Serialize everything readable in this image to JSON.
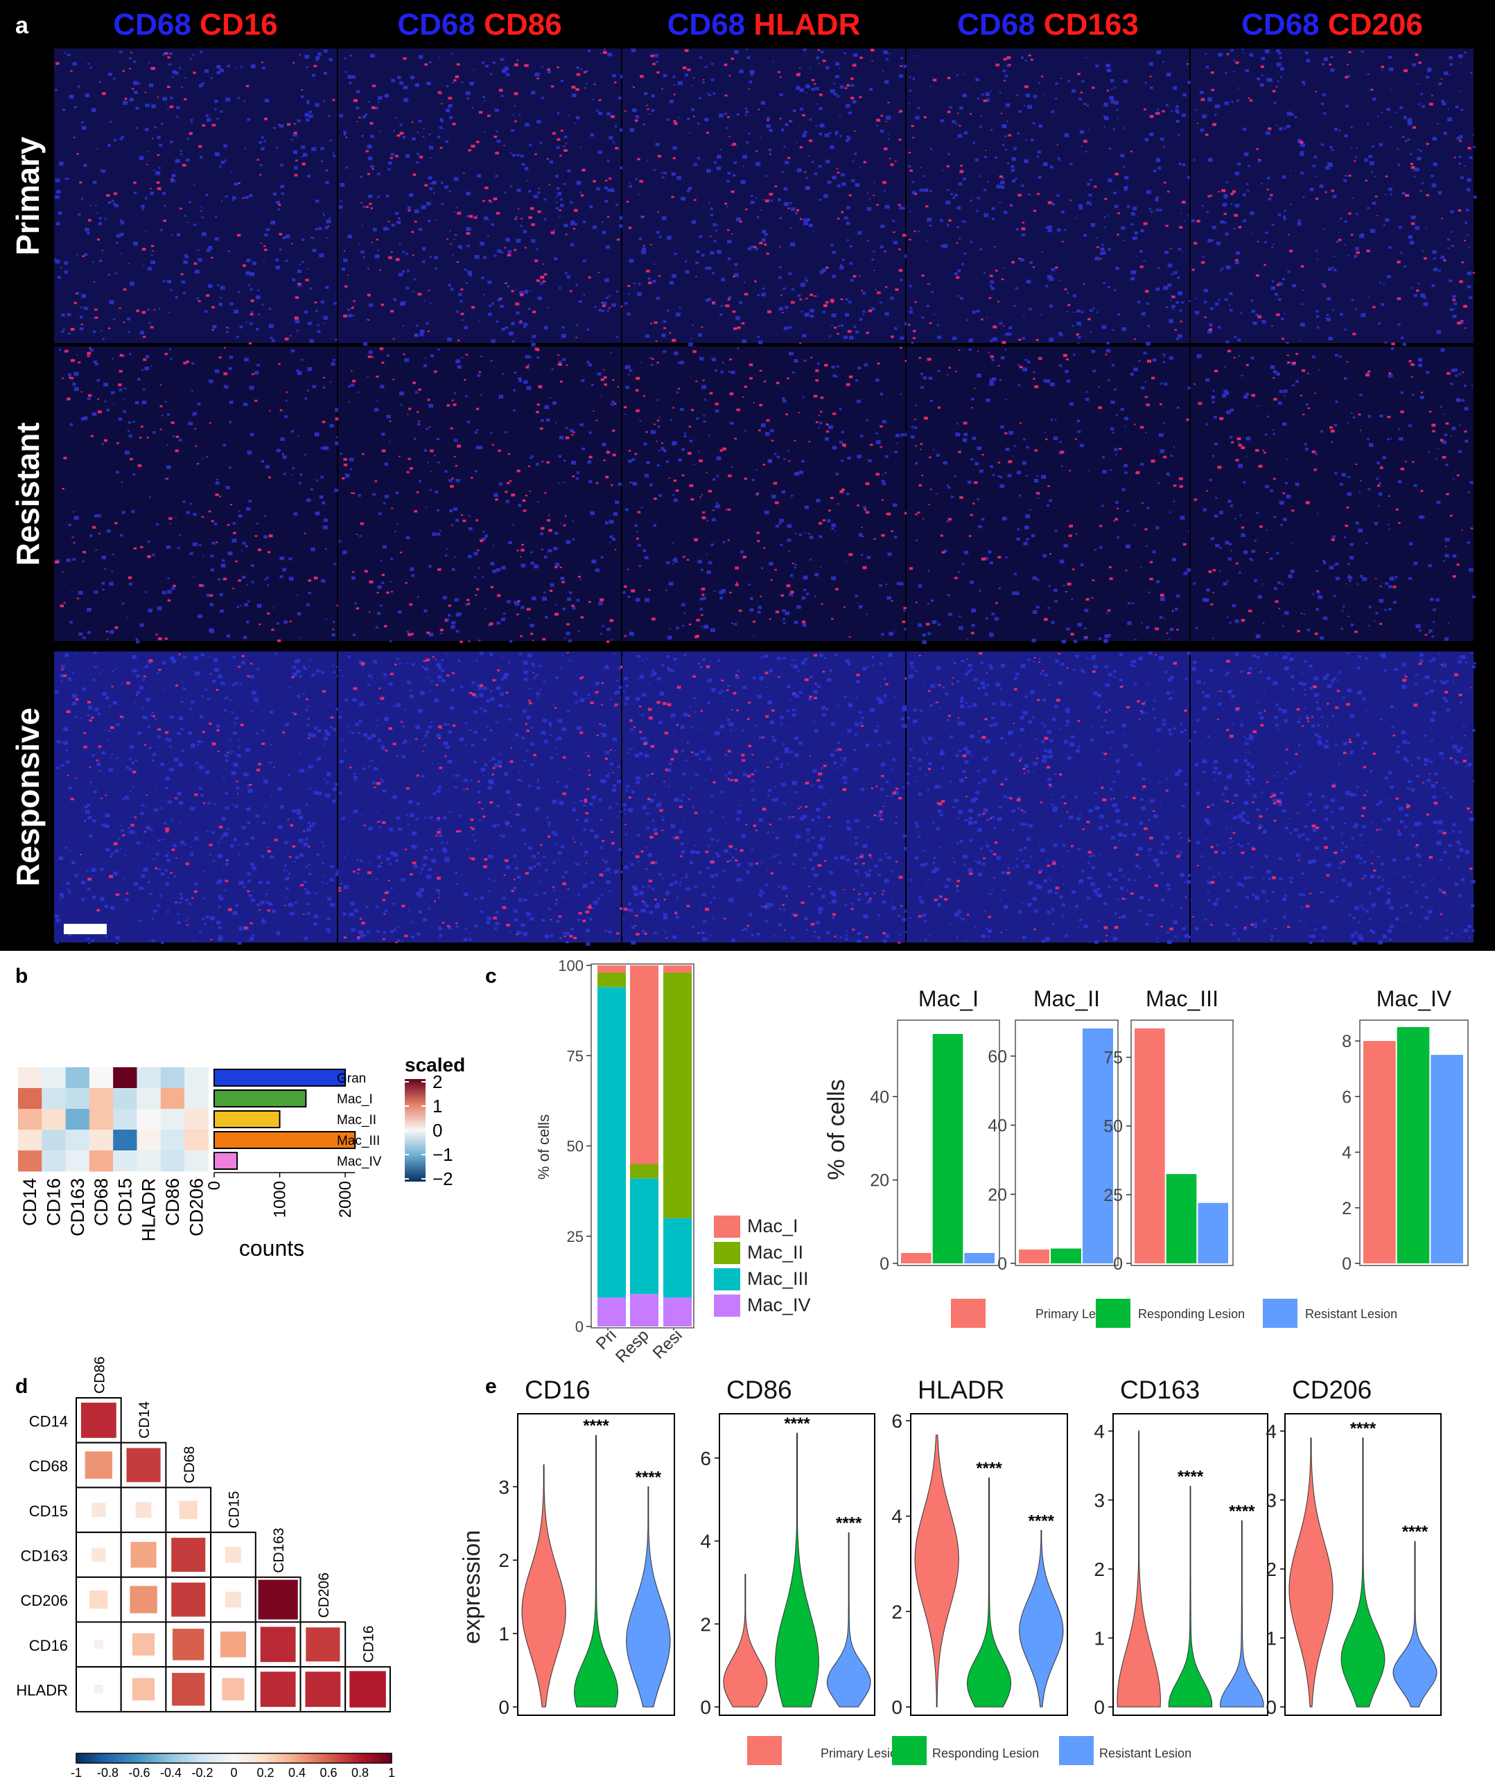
{
  "panel_a": {
    "panel_letter": "a",
    "column_headers": [
      {
        "blue": "CD68",
        "red": "CD16"
      },
      {
        "blue": "CD68",
        "red": "CD86"
      },
      {
        "blue": "CD68",
        "red": "HLADR"
      },
      {
        "blue": "CD68",
        "red": "CD163"
      },
      {
        "blue": "CD68",
        "red": "CD206"
      }
    ],
    "row_labels": [
      "Primary",
      "Resistant",
      "Responsive"
    ],
    "colors": {
      "header_blue": "#2222ee",
      "header_red": "#ff1a1a",
      "tissue_dark": "#0a0a3a",
      "nucleus": "#2e36d8",
      "marker": "#ff2a6a",
      "background": "#000000"
    }
  },
  "panel_b": {
    "panel_letter": "b",
    "heatmap_columns": [
      "CD14",
      "CD16",
      "CD163",
      "CD68",
      "CD15",
      "HLADR",
      "CD86",
      "CD206"
    ],
    "row_labels": [
      "Gran",
      "Mac_I",
      "Mac_II",
      "Mac_III",
      "Mac_IV"
    ],
    "legend_title": "scaled",
    "legend_ticks": [
      "2",
      "1",
      "0",
      "−1",
      "−2"
    ],
    "counts_axis_label": "counts",
    "counts_ticks": [
      "0",
      "1000",
      "2000"
    ]
  },
  "panel_c": {
    "panel_letter": "c",
    "legend": [
      "Mac_I",
      "Mac_II",
      "Mac_III",
      "Mac_IV"
    ],
    "bottom_legend": [
      "Primary Lesion",
      "Responding Lesion",
      "Resistant Lesion"
    ],
    "colors": {
      "Mac_I": "#f8766d",
      "Mac_II": "#7cae00",
      "Mac_III": "#00bfc4",
      "Mac_IV": "#c77cff",
      "primary": "#f8766d",
      "responding": "#00ba38",
      "resistant": "#619cff"
    }
  },
  "panel_d": {
    "panel_letter": "d",
    "colorbar_ticks": [
      "-1",
      "-0.8",
      "-0.6",
      "-0.4",
      "-0.2",
      "0",
      "0.2",
      "0.4",
      "0.6",
      "0.8",
      "1"
    ]
  },
  "panel_e": {
    "panel_letter": "e",
    "significance": "****"
  },
  "chart_data": [
    {
      "type": "heatmap",
      "id": "b-heatmap",
      "rows": [
        "Gran",
        "Mac_I",
        "Mac_II",
        "Mac_III",
        "Mac_IV"
      ],
      "columns": [
        "CD14",
        "CD16",
        "CD163",
        "CD68",
        "CD15",
        "HLADR",
        "CD86",
        "CD206"
      ],
      "values": [
        [
          0.2,
          -0.2,
          -1.0,
          0.0,
          2.5,
          -0.4,
          -0.7,
          -0.2
        ],
        [
          1.4,
          -0.5,
          -0.6,
          0.7,
          -0.6,
          -0.2,
          0.9,
          -0.2
        ],
        [
          0.8,
          0.4,
          -1.2,
          0.7,
          -0.5,
          0.0,
          -0.2,
          0.3
        ],
        [
          0.3,
          -0.6,
          -0.4,
          0.3,
          -1.8,
          0.1,
          -0.4,
          0.5
        ],
        [
          1.3,
          -0.5,
          -0.2,
          0.9,
          -0.3,
          -0.2,
          -0.5,
          -0.2
        ]
      ],
      "legend_title": "scaled",
      "range": [
        -2,
        2
      ]
    },
    {
      "type": "bar",
      "id": "b-counts",
      "orientation": "horizontal",
      "categories": [
        "Gran",
        "Mac_I",
        "Mac_II",
        "Mac_III",
        "Mac_IV"
      ],
      "values": [
        2000,
        1400,
        1000,
        2150,
        350
      ],
      "colors": [
        "#1a3ee0",
        "#4aa338",
        "#f0c020",
        "#f07a10",
        "#f080e0"
      ],
      "xlabel": "counts",
      "xlim": [
        0,
        2200
      ],
      "xticks": [
        0,
        1000,
        2000
      ]
    },
    {
      "type": "bar",
      "id": "c-stacked",
      "stacked": true,
      "categories": [
        "Pri",
        "Resp",
        "Resi"
      ],
      "series": [
        {
          "name": "Mac_IV",
          "values": [
            8,
            9,
            8
          ]
        },
        {
          "name": "Mac_III",
          "values": [
            86,
            32,
            22
          ]
        },
        {
          "name": "Mac_II",
          "values": [
            4,
            4,
            68
          ]
        },
        {
          "name": "Mac_I",
          "values": [
            2,
            55,
            2
          ]
        }
      ],
      "ylabel": "% of cells",
      "ylim": [
        0,
        100
      ],
      "yticks": [
        0,
        25,
        50,
        75,
        100
      ]
    },
    {
      "type": "bar",
      "id": "c-facets",
      "ylabel": "% of cells",
      "facets": [
        {
          "title": "Mac_I",
          "values": [
            2.5,
            55,
            2.5
          ],
          "ylim": [
            0,
            58
          ],
          "yticks": [
            0,
            20,
            40
          ]
        },
        {
          "title": "Mac_II",
          "values": [
            4,
            4.3,
            68
          ],
          "ylim": [
            0,
            70
          ],
          "yticks": [
            0,
            20,
            40,
            60
          ]
        },
        {
          "title": "Mac_III",
          "values": [
            85.5,
            32.5,
            22
          ],
          "ylim": [
            0,
            88
          ],
          "yticks": [
            0,
            25,
            50,
            75
          ]
        },
        {
          "title": "Mac_IV",
          "values": [
            8,
            8.5,
            7.5
          ],
          "ylim": [
            0,
            8.7
          ],
          "yticks": [
            0,
            2,
            4,
            6,
            8
          ]
        }
      ],
      "legend": [
        "Primary Lesion",
        "Responding Lesion",
        "Resistant Lesion"
      ]
    },
    {
      "type": "heatmap",
      "id": "d-correlation",
      "labels": [
        "CD86",
        "CD14",
        "CD68",
        "CD15",
        "CD163",
        "CD206",
        "CD16",
        "HLADR"
      ],
      "lower_triangle": [
        [
          0.75
        ],
        [
          0.45,
          0.7
        ],
        [
          0.12,
          0.15,
          0.2
        ],
        [
          0.12,
          0.4,
          0.7,
          0.15
        ],
        [
          0.2,
          0.45,
          0.7,
          0.15,
          0.95
        ],
        [
          0.05,
          0.3,
          0.6,
          0.4,
          0.75,
          0.7
        ],
        [
          -0.05,
          0.3,
          0.65,
          0.3,
          0.75,
          0.75,
          0.8
        ]
      ],
      "range": [
        -1,
        1
      ],
      "colorbar_ticks": [
        "-1",
        "-0.8",
        "-0.6",
        "-0.4",
        "-0.2",
        "0",
        "0.2",
        "0.4",
        "0.6",
        "0.8",
        "1"
      ]
    },
    {
      "type": "violin",
      "id": "e-violins",
      "ylabel": "expression",
      "groups": [
        "Primary Lesion",
        "Responding Lesion",
        "Resistant Lesion"
      ],
      "facets": [
        {
          "title": "CD16",
          "ylim": [
            0,
            3.9
          ],
          "yticks": [
            0,
            1,
            2,
            3
          ],
          "max": [
            3.3,
            3.7,
            3.0
          ],
          "median": [
            1.3,
            0.2,
            0.9
          ],
          "stars": [
            false,
            true,
            true
          ]
        },
        {
          "title": "CD86",
          "ylim": [
            0,
            6.9
          ],
          "yticks": [
            0,
            2,
            4,
            6
          ],
          "max": [
            3.2,
            6.6,
            4.2
          ],
          "median": [
            0.6,
            1.1,
            0.6
          ],
          "stars": [
            false,
            true,
            true
          ]
        },
        {
          "title": "HLADR",
          "ylim": [
            0,
            6.0
          ],
          "yticks": [
            0,
            2,
            4,
            6
          ],
          "max": [
            5.7,
            4.8,
            3.7
          ],
          "median": [
            3.1,
            0.5,
            1.6
          ],
          "stars": [
            false,
            true,
            true
          ]
        },
        {
          "title": "CD163",
          "ylim": [
            0,
            4.15
          ],
          "yticks": [
            0,
            1,
            2,
            3,
            4
          ],
          "max": [
            4.0,
            3.2,
            2.7
          ],
          "median": [
            0.1,
            0.03,
            0.03
          ],
          "stars": [
            false,
            true,
            true
          ]
        },
        {
          "title": "CD206",
          "ylim": [
            0,
            4.15
          ],
          "yticks": [
            0,
            1,
            2,
            3,
            4
          ],
          "max": [
            3.9,
            3.9,
            2.4
          ],
          "median": [
            1.7,
            0.7,
            0.5
          ],
          "stars": [
            false,
            true,
            true
          ]
        }
      ]
    }
  ]
}
